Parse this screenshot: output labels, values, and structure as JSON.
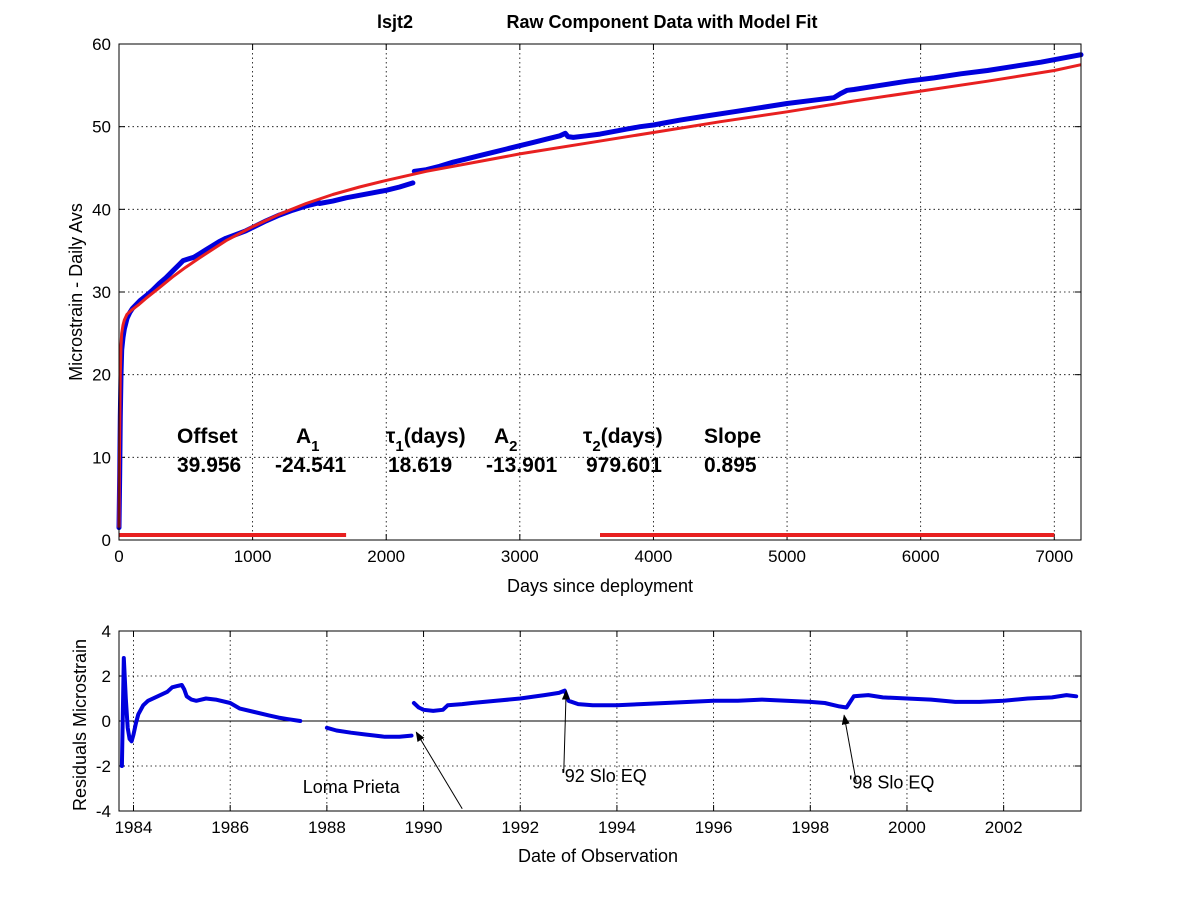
{
  "chart_data": [
    {
      "type": "line",
      "title_station": "lsjt2",
      "title": "Raw Component Data with Model Fit",
      "xlabel": "Days since deployment",
      "ylabel": "Microstrain - Daily Avs",
      "xlim": [
        0,
        7200
      ],
      "ylim": [
        0,
        60
      ],
      "xticks": [
        0,
        1000,
        2000,
        3000,
        4000,
        5000,
        6000,
        7000
      ],
      "yticks": [
        0,
        10,
        20,
        30,
        40,
        50,
        60
      ],
      "grid": true,
      "colors": {
        "data": "#0000dd",
        "fit": "#e82020"
      },
      "fit_params": {
        "headers": [
          "Offset",
          "A1",
          "τ1(days)",
          "A2",
          "τ2(days)",
          "Slope"
        ],
        "values": [
          "39.956",
          "-24.541",
          "18.619",
          "-13.901",
          "979.601",
          "0.895"
        ]
      },
      "series": [
        {
          "role": "data",
          "segments": [
            {
              "x": [
                0,
                5,
                10,
                15,
                20,
                30,
                40,
                60,
                80,
                100,
                130,
                160,
                200,
                250,
                300,
                350,
                400,
                450,
                480,
                520,
                560,
                600,
                650,
                700,
                750,
                800,
                850,
                900,
                950,
                1000,
                1100,
                1200,
                1300,
                1400,
                1500
              ],
              "y": [
                1.5,
                8,
                15,
                20,
                23,
                24.5,
                25.5,
                26.8,
                27.5,
                28,
                28.5,
                29,
                29.5,
                30.2,
                31,
                31.7,
                32.5,
                33.3,
                33.8,
                34,
                34.2,
                34.6,
                35.1,
                35.6,
                36.1,
                36.5,
                36.8,
                37.1,
                37.4,
                37.8,
                38.6,
                39.3,
                39.9,
                40.4,
                40.8
              ]
            },
            {
              "x": [
                1500,
                1600,
                1700,
                1800,
                1900,
                2000,
                2100,
                2200
              ],
              "y": [
                40.7,
                41,
                41.4,
                41.7,
                42,
                42.3,
                42.7,
                43.2
              ]
            },
            {
              "x": [
                2210,
                2300,
                2400,
                2500,
                2600,
                2700,
                2800,
                2900,
                3000,
                3100,
                3200,
                3300,
                3340,
                3360,
                3400,
                3500,
                3600,
                3700,
                3800,
                3900,
                4000,
                4100,
                4200,
                4400,
                4600,
                4800,
                5000,
                5200,
                5350,
                5400,
                5450,
                5500,
                5700,
                5900,
                6100,
                6300,
                6500,
                6700,
                6900,
                7100,
                7200
              ],
              "y": [
                44.6,
                44.8,
                45.2,
                45.7,
                46.1,
                46.5,
                46.9,
                47.3,
                47.7,
                48.1,
                48.5,
                48.9,
                49.2,
                48.8,
                48.7,
                48.9,
                49.1,
                49.4,
                49.7,
                50,
                50.2,
                50.5,
                50.8,
                51.3,
                51.8,
                52.3,
                52.8,
                53.2,
                53.5,
                54,
                54.4,
                54.5,
                55,
                55.5,
                55.9,
                56.4,
                56.8,
                57.3,
                57.8,
                58.4,
                58.7
              ]
            }
          ]
        },
        {
          "role": "fit",
          "x": [
            0,
            2,
            5,
            10,
            15,
            20,
            30,
            40,
            60,
            80,
            100,
            150,
            200,
            300,
            400,
            500,
            600,
            800,
            1000,
            1200,
            1400,
            1600,
            1800,
            2000,
            2300,
            2600,
            3000,
            3500,
            4000,
            4500,
            5000,
            5500,
            6000,
            6500,
            7000,
            7200
          ],
          "y": [
            1.5,
            8,
            13,
            20,
            23.5,
            25,
            26,
            26.6,
            27.3,
            27.6,
            27.9,
            28.5,
            29.2,
            30.5,
            31.8,
            33,
            34.1,
            36.2,
            37.9,
            39.4,
            40.7,
            41.8,
            42.7,
            43.5,
            44.6,
            45.5,
            46.7,
            48,
            49.3,
            50.6,
            51.8,
            53.1,
            54.3,
            55.5,
            56.8,
            57.5
          ]
        },
        {
          "role": "fit-baseline",
          "segments": [
            {
              "x": [
                0,
                1700
              ],
              "y": [
                0.6,
                0.6
              ]
            },
            {
              "x": [
                3600,
                7000
              ],
              "y": [
                0.6,
                0.6
              ]
            }
          ]
        }
      ]
    },
    {
      "type": "line",
      "xlabel": "Date of Observation",
      "ylabel": "Residuals Microstrain",
      "xlim": [
        1983.7,
        2003.6
      ],
      "ylim": [
        -4,
        4
      ],
      "xticks": [
        1984,
        1986,
        1988,
        1990,
        1992,
        1994,
        1996,
        1998,
        2000,
        2002
      ],
      "yticks": [
        -4,
        -2,
        0,
        2,
        4
      ],
      "grid": true,
      "zero_line": true,
      "colors": {
        "data": "#0000dd"
      },
      "series": [
        {
          "role": "residual",
          "segments": [
            {
              "x": [
                1983.76,
                1983.8,
                1983.84,
                1983.88,
                1983.92,
                1983.96,
                1984.0,
                1984.05,
                1984.1,
                1984.2,
                1984.3,
                1984.5,
                1984.7,
                1984.8,
                1984.9,
                1985.0,
                1985.05,
                1985.1,
                1985.2,
                1985.3,
                1985.5,
                1985.7,
                1986.0,
                1986.2,
                1986.5,
                1986.8,
                1987.0,
                1987.2,
                1987.45
              ],
              "y": [
                -2.0,
                2.8,
                1.0,
                -0.3,
                -0.8,
                -0.9,
                -0.6,
                -0.1,
                0.3,
                0.7,
                0.9,
                1.1,
                1.3,
                1.5,
                1.55,
                1.6,
                1.4,
                1.1,
                0.95,
                0.9,
                1.0,
                0.95,
                0.8,
                0.55,
                0.4,
                0.25,
                0.15,
                0.08,
                0.0
              ]
            },
            {
              "x": [
                1988.0,
                1988.2,
                1988.5,
                1988.8,
                1989.0,
                1989.2,
                1989.5,
                1989.75
              ],
              "y": [
                -0.3,
                -0.42,
                -0.52,
                -0.6,
                -0.65,
                -0.7,
                -0.7,
                -0.65
              ]
            },
            {
              "x": [
                1989.8,
                1989.9,
                1990.0,
                1990.2,
                1990.4,
                1990.5,
                1990.8,
                1991.0,
                1991.5,
                1992.0,
                1992.5,
                1992.8,
                1992.92,
                1993.0,
                1993.2,
                1993.5,
                1994.0,
                1994.5,
                1995.0,
                1995.5,
                1996.0,
                1996.5,
                1997.0,
                1997.5,
                1998.0,
                1998.3,
                1998.6,
                1998.75,
                1998.9,
                1999.2,
                1999.5,
                2000.0,
                2000.5,
                2001.0,
                2001.5,
                2002.0,
                2002.5,
                2003.0,
                2003.3,
                2003.5
              ],
              "y": [
                0.8,
                0.6,
                0.5,
                0.45,
                0.5,
                0.7,
                0.75,
                0.8,
                0.9,
                1.0,
                1.15,
                1.25,
                1.35,
                0.9,
                0.75,
                0.7,
                0.7,
                0.75,
                0.8,
                0.85,
                0.9,
                0.9,
                0.95,
                0.9,
                0.85,
                0.8,
                0.65,
                0.6,
                1.1,
                1.15,
                1.05,
                1.0,
                0.95,
                0.85,
                0.85,
                0.9,
                1.0,
                1.05,
                1.15,
                1.1
              ]
            }
          ]
        }
      ],
      "annotations": [
        {
          "text": "Loma Prieta",
          "label_at": [
            1987.5,
            -3.2
          ],
          "tail": [
            1990.8,
            -3.9
          ],
          "head": [
            1989.85,
            -0.5
          ]
        },
        {
          "text": "'92 Slo EQ",
          "label_at": [
            1992.85,
            -2.7
          ],
          "tail": [
            1992.9,
            -2.3
          ],
          "head": [
            1992.95,
            1.35
          ]
        },
        {
          "text": "'98 Slo EQ",
          "label_at": [
            1998.8,
            -3.0
          ],
          "tail": [
            1998.95,
            -2.7
          ],
          "head": [
            1998.7,
            0.25
          ]
        }
      ]
    }
  ]
}
